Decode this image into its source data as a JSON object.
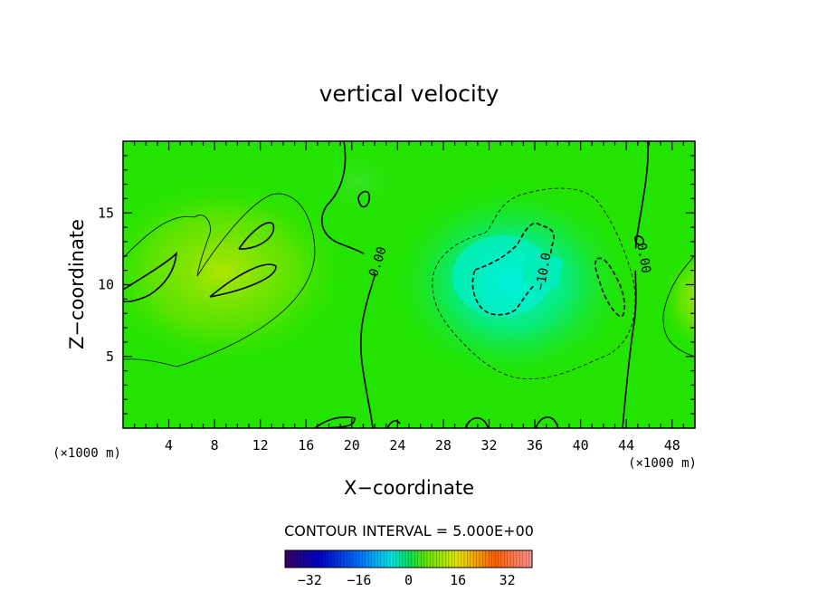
{
  "chart_data": {
    "type": "heatmap",
    "title": "vertical velocity",
    "xlabel": "X−coordinate",
    "ylabel": "Z−coordinate",
    "x_unit": "(×1000 m)",
    "y_unit": "(×1000 m)",
    "xlim": [
      0,
      50
    ],
    "ylim": [
      0,
      20
    ],
    "x_ticks": [
      4,
      8,
      12,
      16,
      20,
      24,
      28,
      32,
      36,
      40,
      44,
      48
    ],
    "y_ticks": [
      5,
      10,
      15
    ],
    "contour_interval_text": "CONTOUR INTERVAL = 5.000E+00",
    "contour_labels": [
      "0.00",
      "0.00",
      "−10.0"
    ],
    "colorbar": {
      "range": [
        -40,
        40
      ],
      "ticks": [
        "−32",
        "−16",
        "0",
        "16",
        "32"
      ],
      "tick_values": [
        -32,
        -16,
        0,
        16,
        32
      ]
    },
    "features": [
      {
        "kind": "updraft",
        "x": 12,
        "z": 11,
        "value": 5
      },
      {
        "kind": "downdraft",
        "x": 34,
        "z": 10.5,
        "value": -12
      },
      {
        "kind": "updraft",
        "x": 50,
        "z": 9,
        "value": 3
      }
    ]
  },
  "colors": {
    "background_field": "#22e400",
    "positive_tint": "#a8e600",
    "negative_tint": "#00efc6",
    "contour_line": "#000000"
  }
}
